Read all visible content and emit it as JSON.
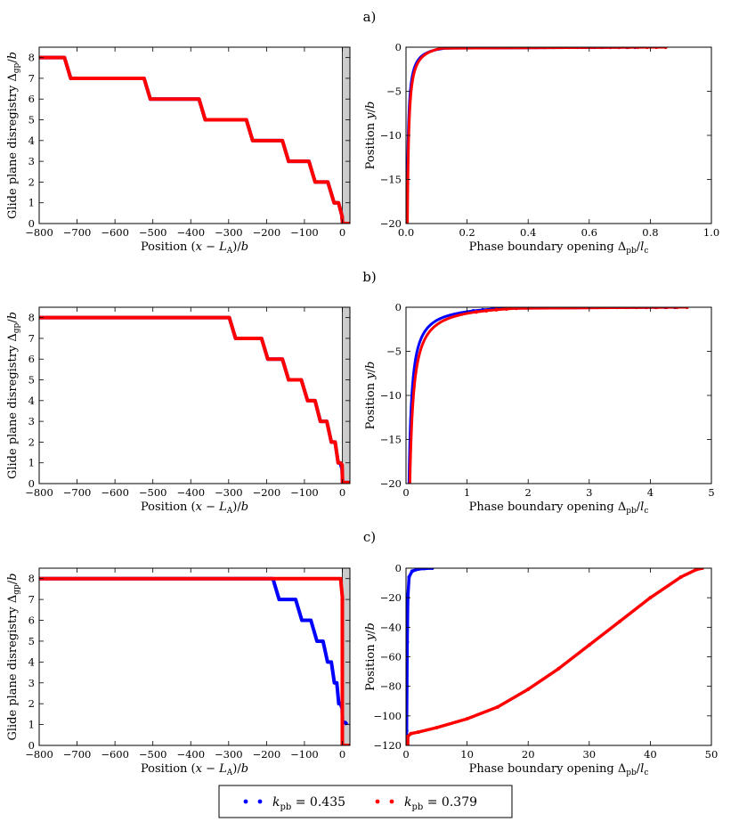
{
  "figure": {
    "panel_labels": [
      "a)",
      "b)",
      "c)"
    ]
  },
  "legend": {
    "entries": [
      {
        "label": "k_pb = 0.435",
        "math": "k",
        "sub": "pb",
        "rest": " = 0.435",
        "color": "#0000ff"
      },
      {
        "label": "k_pb = 0.379",
        "math": "k",
        "sub": "pb",
        "rest": " = 0.379",
        "color": "#ff0000"
      }
    ]
  },
  "colors": {
    "blue": "#0000ff",
    "red": "#ff0000",
    "shade": "#cccccc"
  },
  "chart_data": [
    {
      "id": "a-left",
      "type": "line",
      "panel": "a)",
      "xlabel": "Position (x − L_A)/b",
      "ylabel": "Glide plane disregistry Δ_gp/b",
      "xlim": [
        -800,
        20
      ],
      "ylim": [
        0,
        8.5
      ],
      "xticks": [
        -800,
        -700,
        -600,
        -500,
        -400,
        -300,
        -200,
        -100,
        0
      ],
      "yticks": [
        0,
        1,
        2,
        3,
        4,
        5,
        6,
        7,
        8
      ],
      "shaded_x": [
        0,
        20
      ],
      "series": [
        {
          "color": "#0000ff",
          "style": "steps",
          "x": [
            -800,
            -725,
            -515,
            -370,
            -245,
            -150,
            -80,
            -30,
            -5,
            0,
            20
          ],
          "y": [
            8,
            7,
            6,
            5,
            4,
            3,
            2,
            1,
            0.3,
            0,
            0
          ]
        },
        {
          "color": "#ff0000",
          "style": "steps",
          "x": [
            -800,
            -725,
            -515,
            -370,
            -245,
            -150,
            -80,
            -30,
            -5,
            0,
            20
          ],
          "y": [
            8,
            7,
            6,
            5,
            4,
            3,
            2,
            1,
            0.3,
            0,
            0
          ]
        }
      ]
    },
    {
      "id": "a-right",
      "type": "scatter",
      "panel": "a)",
      "xlabel": "Phase boundary opening Δ_pb/l_c",
      "ylabel": "Position y/b",
      "xlim": [
        0,
        1.0
      ],
      "ylim": [
        -20,
        0
      ],
      "xticks": [
        0.0,
        0.2,
        0.4,
        0.6,
        0.8,
        1.0
      ],
      "xtick_labels": [
        "0.0",
        "0.2",
        "0.4",
        "0.6",
        "0.8",
        "1.0"
      ],
      "yticks": [
        -20,
        -15,
        -10,
        -5,
        0
      ],
      "series": [
        {
          "color": "#0000ff",
          "style": "hyperbolic",
          "c": 0.78,
          "a": 0.5,
          "xmax": 0.75
        },
        {
          "color": "#ff0000",
          "style": "hyperbolic",
          "c": 0.96,
          "a": 0.7,
          "xmax": 0.85
        }
      ]
    },
    {
      "id": "b-left",
      "type": "line",
      "panel": "b)",
      "xlabel": "Position (x − L_A)/b",
      "ylabel": "Glide plane disregistry Δ_gp/b",
      "xlim": [
        -800,
        20
      ],
      "ylim": [
        0,
        8.5
      ],
      "xticks": [
        -800,
        -700,
        -600,
        -500,
        -400,
        -300,
        -200,
        -100,
        0
      ],
      "yticks": [
        0,
        1,
        2,
        3,
        4,
        5,
        6,
        7,
        8
      ],
      "shaded_x": [
        0,
        20
      ],
      "series": [
        {
          "color": "#0000ff",
          "style": "steps",
          "x": [
            -800,
            -290,
            -205,
            -150,
            -100,
            -65,
            -35,
            -15,
            -3,
            0,
            20
          ],
          "y": [
            8,
            7,
            6,
            5,
            4,
            3,
            2,
            1,
            0.7,
            0.05,
            0.05
          ]
        },
        {
          "color": "#ff0000",
          "style": "steps",
          "x": [
            -800,
            -290,
            -205,
            -150,
            -100,
            -65,
            -35,
            -15,
            -3,
            0,
            20
          ],
          "y": [
            8,
            7,
            6,
            5,
            4,
            3,
            2,
            1,
            0.9,
            0.05,
            0.05
          ]
        }
      ]
    },
    {
      "id": "b-right",
      "type": "scatter",
      "panel": "b)",
      "xlabel": "Phase boundary opening Δ_pb/l_c",
      "ylabel": "Position y/b",
      "xlim": [
        0,
        5
      ],
      "ylim": [
        -20,
        0
      ],
      "xticks": [
        0,
        1,
        2,
        3,
        4,
        5
      ],
      "yticks": [
        -20,
        -15,
        -10,
        -5,
        0
      ],
      "series": [
        {
          "color": "#0000ff",
          "style": "hyperbolic",
          "c": 2.0,
          "a": 0.5,
          "xmax": 4.4
        },
        {
          "color": "#ff0000",
          "style": "hyperbolic",
          "c": 2.6,
          "a": 0.6,
          "xmax": 4.6
        }
      ]
    },
    {
      "id": "c-left",
      "type": "line",
      "panel": "c)",
      "xlabel": "Position (x − L_A)/b",
      "ylabel": "Glide plane disregistry Δ_gp/b",
      "xlim": [
        -800,
        20
      ],
      "ylim": [
        0,
        8.5
      ],
      "xticks": [
        -800,
        -700,
        -600,
        -500,
        -400,
        -300,
        -200,
        -100,
        0
      ],
      "yticks": [
        0,
        1,
        2,
        3,
        4,
        5,
        6,
        7,
        8
      ],
      "shaded_x": [
        0,
        20
      ],
      "series": [
        {
          "color": "#0000ff",
          "style": "steps",
          "x": [
            -800,
            -175,
            -115,
            -75,
            -45,
            -25,
            -12,
            -3,
            0,
            10
          ],
          "y": [
            8,
            7,
            6,
            5,
            4,
            3,
            2,
            1.8,
            1.1,
            1.0
          ]
        },
        {
          "color": "#ff0000",
          "style": "steps",
          "x": [
            -800,
            -15,
            -2,
            0,
            0,
            20
          ],
          "y": [
            8,
            8,
            7,
            7,
            0,
            0
          ]
        }
      ]
    },
    {
      "id": "c-right",
      "type": "line",
      "panel": "c)",
      "xlabel": "Phase boundary opening Δ_pb/l_c",
      "ylabel": "Position y/b",
      "xlim": [
        0,
        50
      ],
      "ylim": [
        -120,
        0
      ],
      "xticks": [
        0,
        10,
        20,
        30,
        40,
        50
      ],
      "yticks": [
        -120,
        -100,
        -80,
        -60,
        -40,
        -20,
        0
      ],
      "series": [
        {
          "color": "#0000ff",
          "style": "points",
          "x": [
            0.05,
            0.1,
            0.15,
            0.2,
            0.3,
            0.5,
            1.0,
            2.0,
            3.0,
            4.3
          ],
          "y": [
            -118,
            -110,
            -80,
            -50,
            -20,
            -6,
            -2,
            -0.6,
            -0.2,
            0
          ]
        },
        {
          "color": "#ff0000",
          "style": "points",
          "x": [
            0.3,
            0.3,
            0.8,
            2,
            5,
            10,
            15,
            20,
            25,
            30,
            35,
            40,
            45,
            47.5,
            48.5
          ],
          "y": [
            -120,
            -114,
            -112,
            -111,
            -108,
            -102,
            -94,
            -82,
            -68,
            -52,
            -36,
            -20,
            -6,
            -1,
            0
          ]
        }
      ]
    }
  ]
}
